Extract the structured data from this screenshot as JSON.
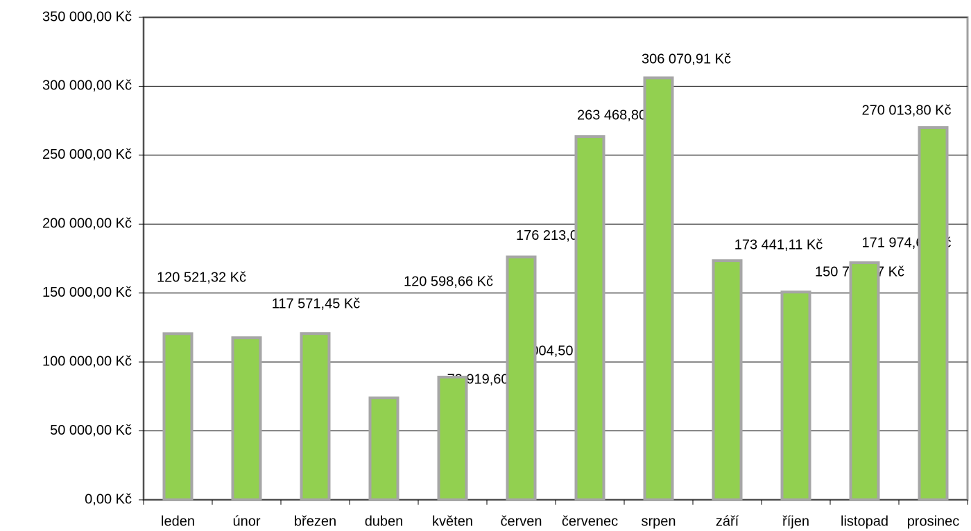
{
  "chart_data": {
    "type": "bar",
    "categories": [
      "leden",
      "únor",
      "březen",
      "duben",
      "květen",
      "červen",
      "červenec",
      "srpen",
      "září",
      "říjen",
      "listopad",
      "prosinec"
    ],
    "values": [
      120521.32,
      117571.45,
      120598.66,
      73919.6,
      89004.5,
      176213.0,
      263468.8,
      306070.91,
      173441.11,
      150714.77,
      171974.68,
      270013.8
    ],
    "value_labels": [
      "120 521,32 Kč",
      "117 571,45 Kč",
      "120 598,66 Kč",
      "73 919,60 Kč",
      "89 004,50 Kč",
      "176 213,00 Kč",
      "263 468,80 Kč",
      "306 070,91 Kč",
      "173 441,11 Kč",
      "150 714,77 Kč",
      "171 974,68 Kč",
      "270 013,80 Kč"
    ],
    "color": "#92d050",
    "ylim": [
      0,
      350000
    ],
    "yticks": [
      {
        "value": 0,
        "label": "0,00 Kč"
      },
      {
        "value": 50000,
        "label": "50 000,00 Kč"
      },
      {
        "value": 100000,
        "label": "100 000,00 Kč"
      },
      {
        "value": 150000,
        "label": "150 000,00 Kč"
      },
      {
        "value": 200000,
        "label": "200 000,00 Kč"
      },
      {
        "value": 250000,
        "label": "250 000,00 Kč"
      },
      {
        "value": 300000,
        "label": "300 000,00 Kč"
      },
      {
        "value": 350000,
        "label": "350 000,00 Kč"
      }
    ],
    "grid": true
  }
}
